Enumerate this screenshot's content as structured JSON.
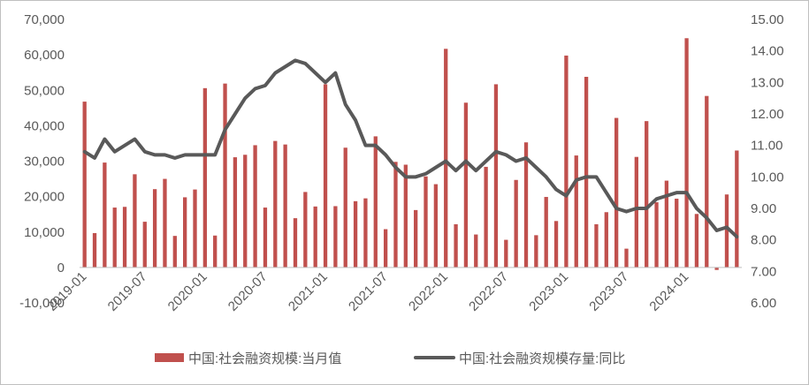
{
  "chart_data": {
    "type": "bar+line",
    "title": "",
    "x": [
      "2019-01",
      "2019-02",
      "2019-03",
      "2019-04",
      "2019-05",
      "2019-06",
      "2019-07",
      "2019-08",
      "2019-09",
      "2019-10",
      "2019-11",
      "2019-12",
      "2020-01",
      "2020-02",
      "2020-03",
      "2020-04",
      "2020-05",
      "2020-06",
      "2020-07",
      "2020-08",
      "2020-09",
      "2020-10",
      "2020-11",
      "2020-12",
      "2021-01",
      "2021-02",
      "2021-03",
      "2021-04",
      "2021-05",
      "2021-06",
      "2021-07",
      "2021-08",
      "2021-09",
      "2021-10",
      "2021-11",
      "2021-12",
      "2022-01",
      "2022-02",
      "2022-03",
      "2022-04",
      "2022-05",
      "2022-06",
      "2022-07",
      "2022-08",
      "2022-09",
      "2022-10",
      "2022-11",
      "2022-12",
      "2023-01",
      "2023-02",
      "2023-03",
      "2023-04",
      "2023-05",
      "2023-06",
      "2023-07",
      "2023-08",
      "2023-09",
      "2023-10",
      "2023-11",
      "2023-12",
      "2024-01",
      "2024-02",
      "2024-03",
      "2024-04",
      "2024-05",
      "2024-06"
    ],
    "x_tick_labels": [
      "2019-01",
      "2019-07",
      "2020-01",
      "2020-07",
      "2021-01",
      "2021-07",
      "2022-01",
      "2022-07",
      "2023-01",
      "2023-07",
      "2024-01"
    ],
    "left_axis": {
      "ylim": [
        -10000,
        70000
      ],
      "ticks": [
        "-10,000",
        "0",
        "10,000",
        "20,000",
        "30,000",
        "40,000",
        "50,000",
        "60,000",
        "70,000"
      ]
    },
    "right_axis": {
      "ylim": [
        6.0,
        15.0
      ],
      "ticks": [
        "6.00",
        "7.00",
        "8.00",
        "9.00",
        "10.00",
        "11.00",
        "12.00",
        "13.00",
        "14.00",
        "15.00"
      ]
    },
    "series": [
      {
        "name": "中国:社会融资规模:当月值",
        "kind": "bar",
        "axis": "left",
        "color": "#c0504d",
        "values": [
          46800,
          9700,
          29600,
          16900,
          17100,
          26300,
          12900,
          22100,
          25000,
          8900,
          19800,
          22000,
          50600,
          9000,
          51900,
          31100,
          31800,
          34500,
          16900,
          35700,
          34700,
          13900,
          21300,
          17200,
          51700,
          17300,
          33800,
          18700,
          19500,
          37000,
          10800,
          29800,
          29000,
          16200,
          25700,
          23500,
          61700,
          12200,
          46500,
          9300,
          28400,
          51700,
          7800,
          24700,
          35300,
          9100,
          19900,
          13100,
          59800,
          31600,
          53800,
          12200,
          15600,
          42200,
          5300,
          31200,
          41300,
          18400,
          24500,
          19400,
          64700,
          15100,
          48400,
          -700,
          20600,
          33000
        ]
      },
      {
        "name": "中国:社会融资规模存量:同比",
        "kind": "line",
        "axis": "right",
        "color": "#595959",
        "values": [
          10.8,
          10.6,
          11.2,
          10.8,
          11.0,
          11.2,
          10.8,
          10.7,
          10.7,
          10.6,
          10.7,
          10.7,
          10.7,
          10.7,
          11.5,
          12.0,
          12.5,
          12.8,
          12.9,
          13.3,
          13.5,
          13.7,
          13.6,
          13.3,
          13.0,
          13.3,
          12.3,
          11.8,
          11.0,
          11.0,
          10.7,
          10.3,
          10.0,
          10.0,
          10.1,
          10.3,
          10.5,
          10.2,
          10.5,
          10.2,
          10.5,
          10.8,
          10.7,
          10.5,
          10.6,
          10.3,
          10.0,
          9.6,
          9.4,
          9.9,
          10.0,
          10.0,
          9.5,
          9.0,
          8.9,
          9.0,
          9.0,
          9.3,
          9.4,
          9.5,
          9.5,
          9.0,
          8.7,
          8.3,
          8.4,
          8.1
        ]
      }
    ],
    "legend_position": "bottom",
    "grid": false
  }
}
